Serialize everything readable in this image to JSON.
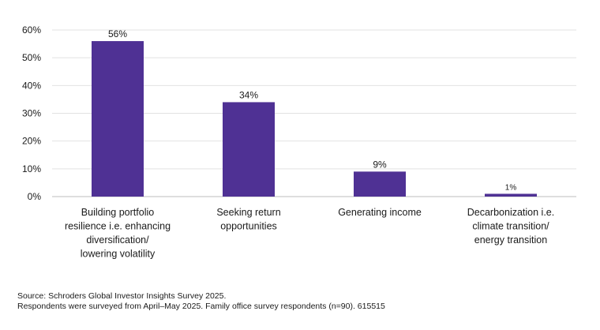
{
  "chart_data": {
    "type": "bar",
    "categories": [
      [
        "Building portfolio",
        "resilience i.e. enhancing",
        "diversification/",
        "lowering volatility"
      ],
      [
        "Seeking return",
        "opportunities"
      ],
      [
        "Generating income"
      ],
      [
        "Decarbonization i.e.",
        "climate transition/",
        "energy transition"
      ]
    ],
    "values": [
      56,
      34,
      9,
      1
    ],
    "data_labels": [
      "56%",
      "34%",
      "9%",
      "1%"
    ],
    "ylim": [
      0,
      60
    ],
    "yticks": [
      0,
      10,
      20,
      30,
      40,
      50,
      60
    ],
    "ytick_labels": [
      "0%",
      "10%",
      "20%",
      "30%",
      "40%",
      "50%",
      "60%"
    ],
    "grid": true,
    "bar_color": "#4f3194",
    "title": "",
    "xlabel": "",
    "ylabel": ""
  },
  "source": {
    "line1": "Source: Schroders Global Investor Insights Survey 2025.",
    "line2": "Respondents were surveyed from April–May 2025. Family office survey respondents (n=90). 615515"
  }
}
